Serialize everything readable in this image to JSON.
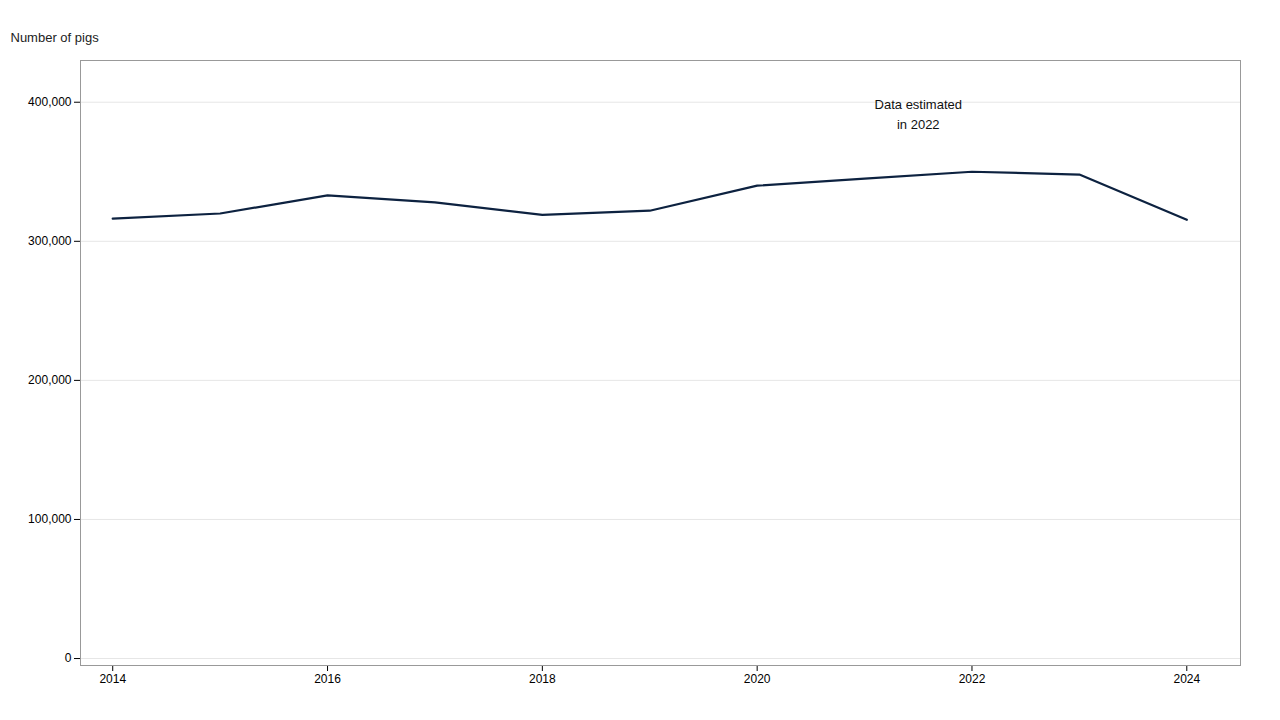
{
  "chart_data": {
    "type": "line",
    "ylabel": "Number of pigs",
    "x": [
      2014,
      2015,
      2016,
      2017,
      2018,
      2019,
      2020,
      2021,
      2022,
      2023,
      2024
    ],
    "values": [
      316300,
      320000,
      333000,
      328000,
      319000,
      322000,
      340000,
      345000,
      350000,
      348000,
      315500
    ],
    "color": "#0d2240",
    "xlim": [
      2013.7,
      2024.5
    ],
    "xticks": [
      2014,
      2016,
      2018,
      2020,
      2022,
      2024
    ],
    "ylim": [
      -5000,
      430000
    ],
    "yticks": [
      0,
      {
        "value": 100000,
        "label": "100,000"
      },
      {
        "value": 200000,
        "label": "200,000"
      },
      {
        "value": 300000,
        "label": "300,000"
      },
      {
        "value": 400000,
        "label": "400,000"
      }
    ],
    "grid": true,
    "annotations": [
      {
        "text": "Data estimated\nin 2022",
        "x": 2021.5,
        "y": 405000
      }
    ]
  }
}
